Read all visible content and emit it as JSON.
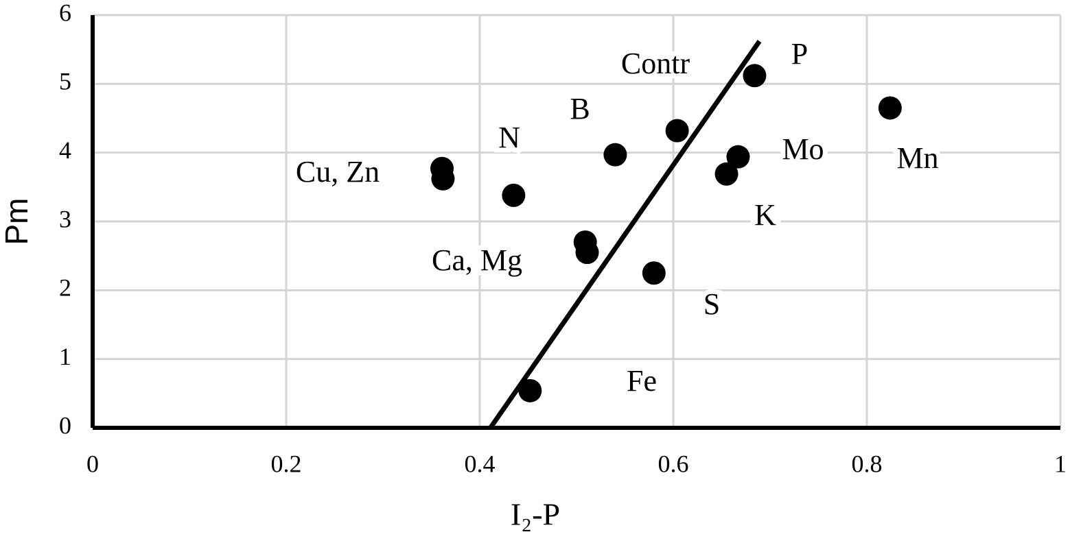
{
  "chart_data": {
    "type": "scatter",
    "x_label": "I₂-P",
    "y_label": "Pm",
    "x": [
      0.361,
      0.362,
      0.435,
      0.54,
      0.604,
      0.684,
      0.824,
      0.667,
      0.655,
      0.509,
      0.511,
      0.58,
      0.452
    ],
    "y": [
      3.77,
      3.62,
      3.38,
      3.97,
      4.32,
      5.12,
      4.65,
      3.94,
      3.69,
      2.7,
      2.55,
      2.25,
      0.54
    ],
    "color": "#000000",
    "trend_line": {
      "x": [
        0.411,
        0.689
      ],
      "y": [
        0,
        5.62
      ]
    },
    "annotations": [
      "Contr",
      "P",
      "B",
      "N",
      "Cu, Zn",
      "Mo",
      "Mn",
      "K",
      "Ca, Mg",
      "S",
      "Fe"
    ],
    "xlim": [
      0,
      1
    ],
    "xticks": [
      0,
      0.2,
      0.4,
      0.6,
      0.8,
      1
    ],
    "ylim": [
      0,
      6
    ],
    "yticks": [
      0,
      1,
      2,
      3,
      4,
      5,
      6
    ],
    "grid": true
  }
}
